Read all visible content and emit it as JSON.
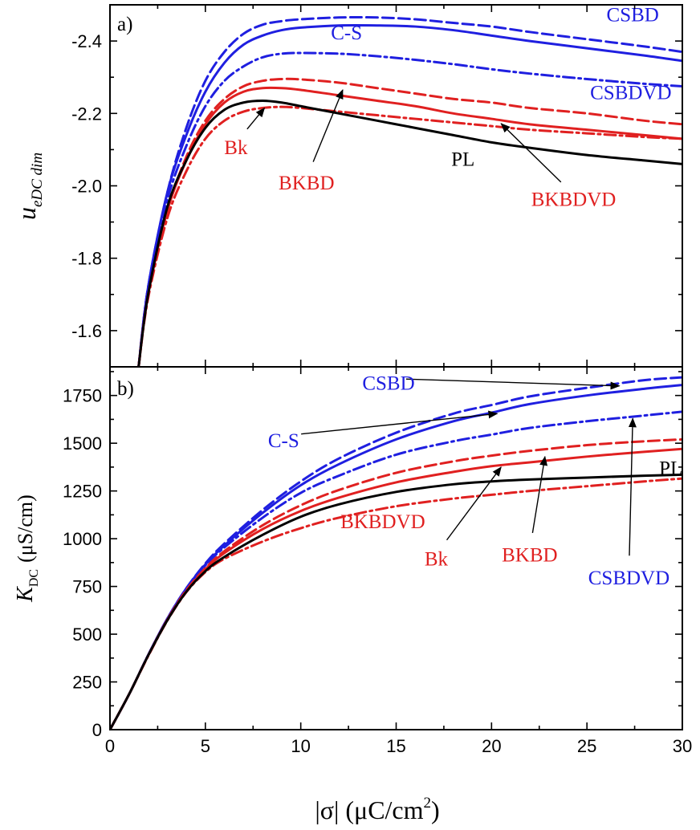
{
  "colors": {
    "blue": "#1f1fe0",
    "red": "#e02020",
    "black": "#000000"
  },
  "xaxis": {
    "label": "|σ| (μC/cm",
    "label_sup": "2",
    "label_close": ")",
    "range": [
      0,
      30
    ],
    "ticks": [
      "0",
      "5",
      "10",
      "15",
      "20",
      "25",
      "30"
    ]
  },
  "chart_data": [
    {
      "type": "line",
      "panel_label": "a)",
      "ylabel_main": "u",
      "ylabel_sub": "eDC dim",
      "ylim": [
        -1.5,
        -2.5
      ],
      "yticks": [
        "-1.6",
        "-1.8",
        "-2.0",
        "-2.2",
        "-2.4"
      ],
      "series": [
        {
          "name": "CSBD",
          "color": "blue",
          "dash": "dashed",
          "x": [
            1.5,
            2,
            3,
            4,
            5,
            6,
            7,
            8,
            9,
            10,
            12,
            14,
            16,
            18,
            20,
            22,
            25,
            28,
            30
          ],
          "y": [
            -1.5,
            -1.72,
            -1.98,
            -2.16,
            -2.29,
            -2.37,
            -2.42,
            -2.445,
            -2.455,
            -2.46,
            -2.465,
            -2.465,
            -2.46,
            -2.45,
            -2.44,
            -2.425,
            -2.405,
            -2.385,
            -2.37
          ]
        },
        {
          "name": "C-S",
          "color": "blue",
          "dash": "solid",
          "x": [
            1.5,
            2,
            3,
            4,
            5,
            6,
            7,
            8,
            9,
            10,
            12,
            14,
            16,
            18,
            20,
            22,
            25,
            28,
            30
          ],
          "y": [
            -1.5,
            -1.72,
            -1.98,
            -2.14,
            -2.26,
            -2.34,
            -2.39,
            -2.415,
            -2.43,
            -2.437,
            -2.443,
            -2.443,
            -2.44,
            -2.43,
            -2.415,
            -2.4,
            -2.38,
            -2.36,
            -2.345
          ]
        },
        {
          "name": "CSBDVD",
          "color": "blue",
          "dash": "dashdot",
          "x": [
            1.5,
            2,
            3,
            4,
            5,
            6,
            7,
            8,
            9,
            10,
            12,
            14,
            16,
            18,
            20,
            22,
            25,
            28,
            30
          ],
          "y": [
            -1.5,
            -1.72,
            -1.96,
            -2.11,
            -2.22,
            -2.29,
            -2.33,
            -2.355,
            -2.365,
            -2.367,
            -2.365,
            -2.358,
            -2.348,
            -2.336,
            -2.322,
            -2.31,
            -2.295,
            -2.282,
            -2.275
          ]
        },
        {
          "name": "BKBD",
          "color": "red",
          "dash": "dashed",
          "x": [
            1.5,
            2,
            3,
            4,
            5,
            6,
            7,
            8,
            9,
            10,
            12,
            14,
            16,
            18,
            20,
            22,
            25,
            28,
            30
          ],
          "y": [
            -1.5,
            -1.7,
            -1.93,
            -2.08,
            -2.18,
            -2.24,
            -2.275,
            -2.29,
            -2.295,
            -2.294,
            -2.285,
            -2.27,
            -2.255,
            -2.24,
            -2.23,
            -2.215,
            -2.2,
            -2.18,
            -2.17
          ]
        },
        {
          "name": "Bk",
          "color": "red",
          "dash": "solid",
          "x": [
            1.5,
            2,
            3,
            4,
            5,
            6,
            7,
            8,
            9,
            10,
            12,
            14,
            16,
            18,
            20,
            22,
            25,
            28,
            30
          ],
          "y": [
            -1.5,
            -1.7,
            -1.93,
            -2.07,
            -2.17,
            -2.23,
            -2.26,
            -2.27,
            -2.27,
            -2.265,
            -2.25,
            -2.235,
            -2.22,
            -2.2,
            -2.185,
            -2.17,
            -2.155,
            -2.14,
            -2.13
          ]
        },
        {
          "name": "BKBDVD",
          "color": "red",
          "dash": "dashdot",
          "x": [
            1.5,
            2,
            3,
            4,
            5,
            6,
            7,
            8,
            9,
            10,
            12,
            14,
            16,
            18,
            20,
            22,
            25,
            28,
            30
          ],
          "y": [
            -1.5,
            -1.69,
            -1.91,
            -2.04,
            -2.13,
            -2.18,
            -2.205,
            -2.215,
            -2.218,
            -2.215,
            -2.205,
            -2.195,
            -2.185,
            -2.175,
            -2.165,
            -2.155,
            -2.145,
            -2.135,
            -2.13
          ]
        },
        {
          "name": "PL",
          "color": "black",
          "dash": "solid",
          "x": [
            1.5,
            2,
            3,
            4,
            5,
            6,
            7,
            8,
            9,
            10,
            12,
            14,
            16,
            18,
            20,
            22,
            25,
            28,
            30
          ],
          "y": [
            -1.5,
            -1.7,
            -1.94,
            -2.07,
            -2.16,
            -2.21,
            -2.23,
            -2.235,
            -2.23,
            -2.22,
            -2.2,
            -2.18,
            -2.16,
            -2.14,
            -2.12,
            -2.105,
            -2.085,
            -2.07,
            -2.06
          ]
        }
      ],
      "annotations": [
        {
          "text": "CSBD",
          "color": "blue",
          "x": 27.4,
          "y": -2.455
        },
        {
          "text": "C-S",
          "color": "blue",
          "x": 12.4,
          "y": -2.405
        },
        {
          "text": "CSBDVD",
          "color": "blue",
          "x": 27.3,
          "y": -2.24
        },
        {
          "text": "Bk",
          "color": "red",
          "x": 6.6,
          "y": -2.088,
          "arrow_to": [
            8.1,
            -2.215
          ]
        },
        {
          "text": "BKBD",
          "color": "red",
          "x": 10.3,
          "y": -1.99,
          "arrow_to": [
            12.2,
            -2.265
          ]
        },
        {
          "text": "PL",
          "color": "black",
          "x": 18.5,
          "y": -2.055
        },
        {
          "text": "BKBDVD",
          "color": "red",
          "x": 24.3,
          "y": -1.945,
          "arrow_to": [
            20.5,
            -2.172
          ]
        }
      ]
    },
    {
      "type": "line",
      "panel_label": "b)",
      "ylabel_main": "K",
      "ylabel_sub": "DC",
      "ylabel_unit": "(μS/cm)",
      "ylim": [
        0,
        1900
      ],
      "yticks": [
        "0",
        "250",
        "500",
        "750",
        "1000",
        "1250",
        "1500",
        "1750"
      ],
      "series": [
        {
          "name": "CSBD",
          "color": "blue",
          "dash": "dashed",
          "x": [
            0,
            1,
            2,
            3,
            4,
            5,
            6,
            8,
            10,
            12,
            15,
            18,
            20,
            22,
            25,
            28,
            30
          ],
          "y": [
            0,
            185,
            390,
            580,
            740,
            870,
            975,
            1150,
            1300,
            1420,
            1555,
            1655,
            1700,
            1745,
            1790,
            1830,
            1845
          ]
        },
        {
          "name": "C-S",
          "color": "blue",
          "dash": "solid",
          "x": [
            0,
            1,
            2,
            3,
            4,
            5,
            6,
            8,
            10,
            12,
            15,
            18,
            20,
            22,
            25,
            28,
            30
          ],
          "y": [
            0,
            185,
            390,
            580,
            740,
            865,
            965,
            1135,
            1280,
            1390,
            1520,
            1615,
            1660,
            1705,
            1750,
            1785,
            1805
          ]
        },
        {
          "name": "CSBDVD",
          "color": "blue",
          "dash": "dashdot",
          "x": [
            0,
            1,
            2,
            3,
            4,
            5,
            6,
            8,
            10,
            12,
            15,
            18,
            20,
            22,
            25,
            28,
            30
          ],
          "y": [
            0,
            185,
            390,
            580,
            735,
            860,
            955,
            1110,
            1240,
            1330,
            1440,
            1510,
            1545,
            1580,
            1615,
            1645,
            1665
          ]
        },
        {
          "name": "BKBD",
          "color": "red",
          "dash": "dashed",
          "x": [
            0,
            1,
            2,
            3,
            4,
            5,
            6,
            8,
            10,
            12,
            15,
            18,
            20,
            22,
            25,
            28,
            30
          ],
          "y": [
            0,
            185,
            388,
            575,
            730,
            845,
            935,
            1070,
            1175,
            1255,
            1345,
            1405,
            1435,
            1460,
            1490,
            1510,
            1520
          ]
        },
        {
          "name": "Bk",
          "color": "red",
          "dash": "solid",
          "x": [
            0,
            1,
            2,
            3,
            4,
            5,
            6,
            8,
            10,
            12,
            15,
            18,
            20,
            22,
            25,
            28,
            30
          ],
          "y": [
            0,
            185,
            388,
            575,
            725,
            840,
            925,
            1050,
            1145,
            1215,
            1295,
            1350,
            1380,
            1400,
            1430,
            1455,
            1470
          ]
        },
        {
          "name": "BKBDVD",
          "color": "red",
          "dash": "dashdot",
          "x": [
            0,
            1,
            2,
            3,
            4,
            5,
            6,
            8,
            10,
            12,
            15,
            18,
            20,
            22,
            25,
            28,
            30
          ],
          "y": [
            0,
            185,
            385,
            570,
            720,
            825,
            895,
            985,
            1055,
            1110,
            1170,
            1210,
            1230,
            1250,
            1275,
            1300,
            1315
          ]
        },
        {
          "name": "PL",
          "color": "black",
          "dash": "solid",
          "x": [
            0,
            1,
            2,
            3,
            4,
            5,
            6,
            8,
            10,
            12,
            15,
            18,
            20,
            22,
            25,
            28,
            30
          ],
          "y": [
            0,
            185,
            388,
            572,
            722,
            830,
            905,
            1020,
            1115,
            1180,
            1245,
            1285,
            1300,
            1310,
            1320,
            1330,
            1335
          ]
        }
      ],
      "annotations": [
        {
          "text": "CSBD",
          "color": "blue",
          "x": 14.6,
          "y": 1780,
          "arrow_to": [
            26.7,
            1800
          ]
        },
        {
          "text": "C-S",
          "color": "blue",
          "x": 9.1,
          "y": 1480,
          "arrow_to": [
            20.3,
            1655
          ]
        },
        {
          "text": "PL",
          "color": "black",
          "x": 29.4,
          "y": 1335
        },
        {
          "text": "BKBDVD",
          "color": "red",
          "x": 14.3,
          "y": 1055
        },
        {
          "text": "Bk",
          "color": "red",
          "x": 17.1,
          "y": 860,
          "arrow_to": [
            20.5,
            1375
          ]
        },
        {
          "text": "BKBD",
          "color": "red",
          "x": 22.0,
          "y": 880,
          "arrow_to": [
            22.8,
            1430
          ]
        },
        {
          "text": "CSBDVD",
          "color": "blue",
          "x": 27.2,
          "y": 760,
          "arrow_to": [
            27.4,
            1630
          ]
        }
      ]
    }
  ]
}
